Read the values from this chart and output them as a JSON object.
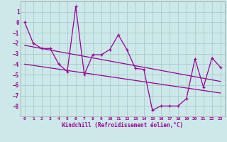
{
  "x": [
    0,
    1,
    2,
    3,
    4,
    5,
    6,
    7,
    8,
    9,
    10,
    11,
    12,
    13,
    14,
    15,
    16,
    17,
    18,
    19,
    20,
    21,
    22,
    23
  ],
  "y_main": [
    0,
    -2,
    -2.5,
    -2.5,
    -4,
    -4.7,
    1.5,
    -5.0,
    -3.1,
    -3.1,
    -2.6,
    -1.2,
    -2.6,
    -4.4,
    -4.5,
    -8.4,
    -8.0,
    -8.0,
    -8.0,
    -7.3,
    -3.5,
    -6.2,
    -3.4,
    -4.3
  ],
  "y_trend": [
    -2.2,
    -2.35,
    -2.5,
    -2.65,
    -2.8,
    -2.95,
    -3.1,
    -3.25,
    -3.4,
    -3.55,
    -3.7,
    -3.85,
    -4.0,
    -4.15,
    -4.3,
    -4.45,
    -4.6,
    -4.75,
    -4.9,
    -5.05,
    -5.2,
    -5.35,
    -5.5,
    -5.65
  ],
  "y_trend2": [
    -4.0,
    -4.12,
    -4.24,
    -4.36,
    -4.48,
    -4.6,
    -4.72,
    -4.84,
    -4.96,
    -5.08,
    -5.2,
    -5.32,
    -5.44,
    -5.56,
    -5.68,
    -5.8,
    -5.92,
    -6.04,
    -6.16,
    -6.28,
    -6.4,
    -6.52,
    -6.64,
    -6.76
  ],
  "line_color": "#990099",
  "bg_color": "#cce8e8",
  "grid_color": "#aacccc",
  "xlabel": "Windchill (Refroidissement éolien,°C)",
  "ylim": [
    -9,
    2
  ],
  "xlim": [
    -0.5,
    23.5
  ],
  "yticks": [
    1,
    0,
    -1,
    -2,
    -3,
    -4,
    -5,
    -6,
    -7,
    -8
  ],
  "xticks": [
    0,
    1,
    2,
    3,
    4,
    5,
    6,
    7,
    8,
    9,
    10,
    11,
    12,
    13,
    14,
    15,
    16,
    17,
    18,
    19,
    20,
    21,
    22,
    23
  ]
}
